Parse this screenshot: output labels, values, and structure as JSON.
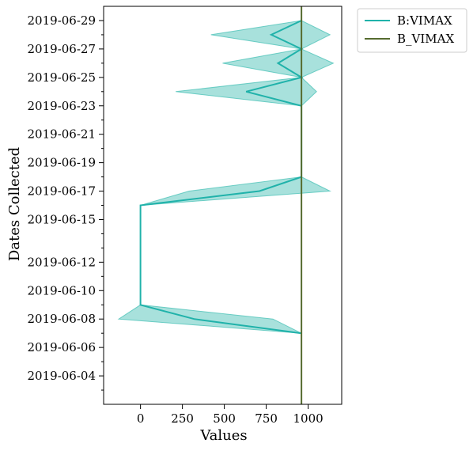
{
  "chart_data": {
    "type": "line",
    "orientation": "horizontal",
    "xlabel": "Values",
    "ylabel": "Dates Collected",
    "xlim": [
      -220,
      1200
    ],
    "ylim": [
      "2019-06-02",
      "2019-06-30"
    ],
    "x_ticks": [
      0,
      250,
      500,
      750,
      1000
    ],
    "y_tick_labels": [
      "2019-06-04",
      "2019-06-06",
      "2019-06-08",
      "2019-06-10",
      "2019-06-12",
      "2019-06-15",
      "2019-06-17",
      "2019-06-19",
      "2019-06-21",
      "2019-06-23",
      "2019-06-25",
      "2019-06-27",
      "2019-06-29"
    ],
    "grid": false,
    "legend_position": "outside-top-right",
    "series": [
      {
        "name": "B:VIMAX",
        "color": "#20b2aa",
        "band_color": "#3dbdb2",
        "points": [
          {
            "date": "2019-06-07",
            "value": 960,
            "low": 960,
            "high": 960
          },
          {
            "date": "2019-06-08",
            "value": 320,
            "low": -130,
            "high": 790
          },
          {
            "date": "2019-06-09",
            "value": 0,
            "low": 0,
            "high": 0
          },
          {
            "date": "2019-06-16",
            "value": 0,
            "low": 0,
            "high": 0
          },
          {
            "date": "2019-06-17",
            "value": 710,
            "low": 290,
            "high": 1130
          },
          {
            "date": "2019-06-18",
            "value": 960,
            "low": 960,
            "high": 960
          },
          {
            "date": "2019-06-23",
            "value": 960,
            "low": 960,
            "high": 960
          },
          {
            "date": "2019-06-24",
            "value": 630,
            "low": 210,
            "high": 1050
          },
          {
            "date": "2019-06-25",
            "value": 960,
            "low": 960,
            "high": 960
          },
          {
            "date": "2019-06-26",
            "value": 820,
            "low": 490,
            "high": 1150
          },
          {
            "date": "2019-06-27",
            "value": 960,
            "low": 960,
            "high": 960
          },
          {
            "date": "2019-06-28",
            "value": 780,
            "low": 420,
            "high": 1130
          },
          {
            "date": "2019-06-29",
            "value": 960,
            "low": 960,
            "high": 960
          }
        ]
      },
      {
        "name": "B_VIMAX",
        "color": "#556b2f",
        "constant_value": 960
      }
    ]
  }
}
